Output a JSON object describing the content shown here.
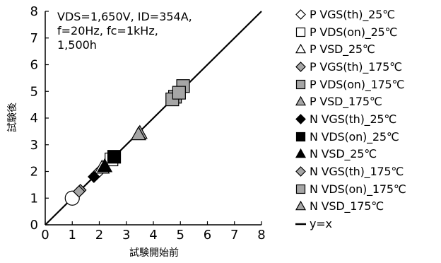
{
  "chart_data": {
    "type": "scatter",
    "xlabel": "試験開始前",
    "ylabel": "試験後",
    "xlim": [
      0,
      8
    ],
    "ylim": [
      0,
      8
    ],
    "xticks": [
      "0",
      "1",
      "2",
      "3",
      "4",
      "5",
      "6",
      "7",
      "8"
    ],
    "yticks": [
      "0",
      "1",
      "2",
      "3",
      "4",
      "5",
      "6",
      "7",
      "8"
    ],
    "annotation": [
      "VDS=1,650V, ID=354A,",
      "f=20Hz, fc=1kHz,",
      "1,500h"
    ],
    "reference_line": {
      "label": "y=x",
      "color": "#000000"
    },
    "legend_position": "right",
    "series": [
      {
        "name": "P VGS(th)_25℃",
        "marker": "diamond",
        "fill": "#ffffff",
        "points": [
          [
            1.9,
            1.9
          ],
          [
            2.0,
            2.0
          ]
        ]
      },
      {
        "name": "P VDS(on)_25℃",
        "marker": "square",
        "fill": "#ffffff",
        "points": [
          [
            2.45,
            2.45
          ]
        ]
      },
      {
        "name": "P VSD_25℃",
        "marker": "triangle",
        "fill": "#ffffff",
        "points": [
          [
            2.1,
            2.15
          ]
        ]
      },
      {
        "name": "P VGS(th)_175℃",
        "marker": "diamond",
        "fill": "#a6a6a6",
        "points": [
          [
            1.3,
            1.3
          ]
        ]
      },
      {
        "name": "P VDS(on)_175℃",
        "marker": "square",
        "fill": "#a6a6a6",
        "points": [
          [
            4.8,
            4.8
          ],
          [
            5.1,
            5.2
          ]
        ]
      },
      {
        "name": "P VSD_175℃",
        "marker": "triangle",
        "fill": "#a6a6a6",
        "points": [
          [
            3.5,
            3.45
          ]
        ]
      },
      {
        "name": "N VGS(th)_25℃",
        "marker": "diamond",
        "fill": "#000000",
        "points": [
          [
            1.8,
            1.8
          ]
        ]
      },
      {
        "name": "N VDS(on)_25℃",
        "marker": "square",
        "fill": "#000000",
        "points": [
          [
            2.55,
            2.55
          ]
        ]
      },
      {
        "name": "N VSD_25℃",
        "marker": "triangle",
        "fill": "#000000",
        "points": [
          [
            2.2,
            2.2
          ]
        ]
      },
      {
        "name": "N VGS(th)_175℃",
        "marker": "diamond",
        "fill": "#a6a6a6",
        "points": [
          [
            1.25,
            1.25
          ]
        ]
      },
      {
        "name": "N VDS(on)_175℃",
        "marker": "square",
        "fill": "#a6a6a6",
        "points": [
          [
            4.7,
            4.7
          ],
          [
            4.95,
            4.95
          ]
        ]
      },
      {
        "name": "N VSD_175℃",
        "marker": "triangle",
        "fill": "#a6a6a6",
        "points": [
          [
            3.45,
            3.4
          ]
        ]
      }
    ],
    "extra_points": [
      {
        "marker": "circle",
        "fill": "#ffffff",
        "point": [
          1.0,
          1.0
        ]
      }
    ]
  }
}
